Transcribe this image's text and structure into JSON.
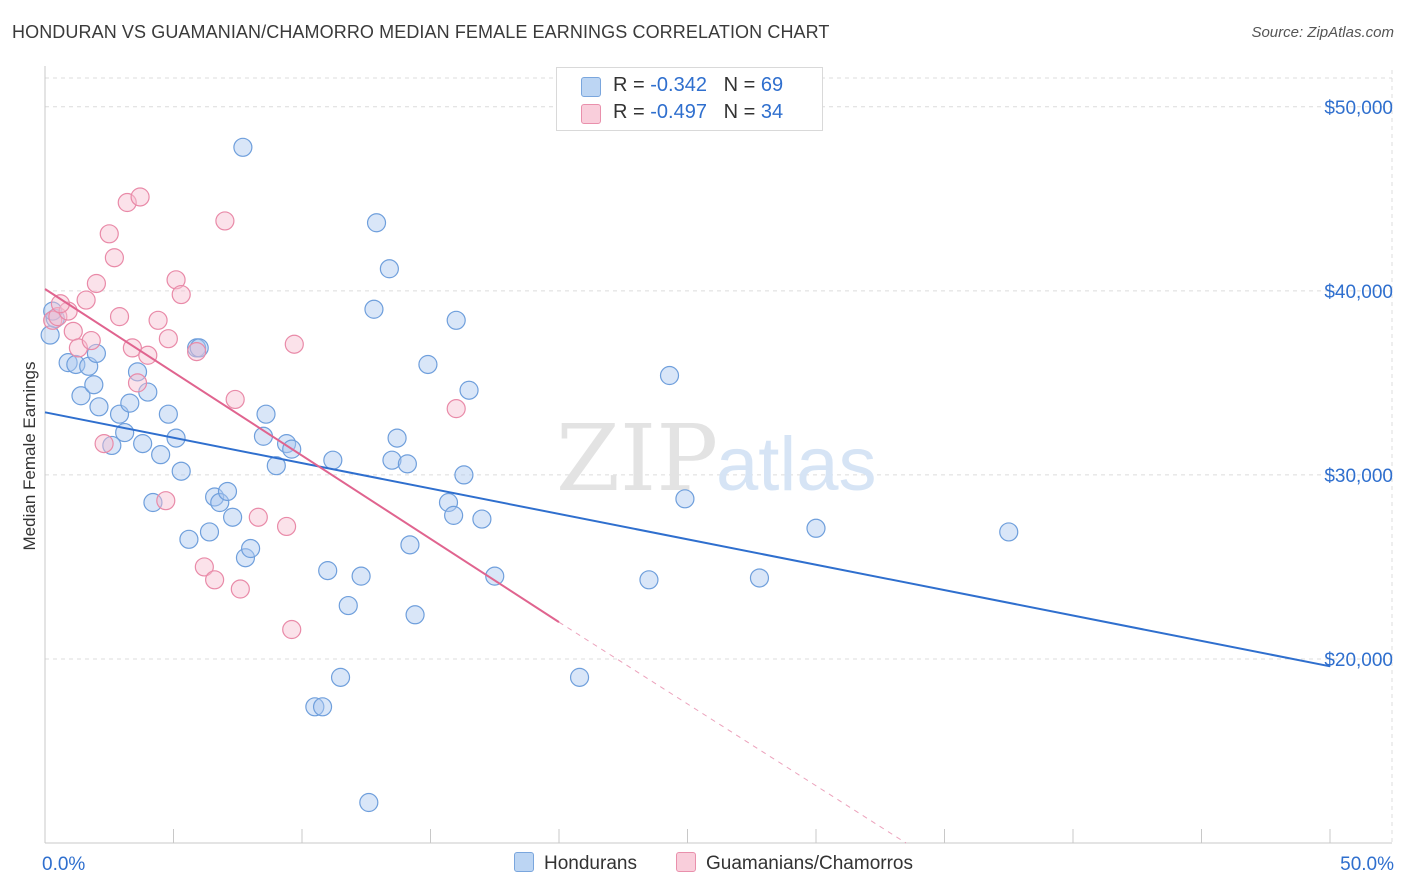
{
  "header": {
    "title": "HONDURAN VS GUAMANIAN/CHAMORRO MEDIAN FEMALE EARNINGS CORRELATION CHART",
    "source": "Source: ZipAtlas.com"
  },
  "watermark": {
    "zip": "ZIP",
    "atlas": "atlas"
  },
  "legend": {
    "rows": [
      {
        "r_label": "R = ",
        "r_value": "-0.342",
        "n_label": "N = ",
        "n_value": "69"
      },
      {
        "r_label": "R = ",
        "r_value": "-0.497",
        "n_label": "N = ",
        "n_value": "34"
      }
    ]
  },
  "bottom_legend": {
    "hondurans": "Hondurans",
    "guamanians": "Guamanians/Chamorros"
  },
  "colors": {
    "blue_fill": "#aac8f0",
    "blue_stroke": "#6f9fdc",
    "blue_line": "#2f6fce",
    "pink_fill": "#f7bfd0",
    "pink_stroke": "#e98aa8",
    "pink_line": "#e0648f",
    "tick_label": "#2f6fce"
  },
  "chart_data": {
    "type": "scatter",
    "ylabel": "Median Female Earnings",
    "xlabel": "",
    "x_tick_labels": [
      "0.0%",
      "50.0%"
    ],
    "y_tick_labels": [
      "$20,000",
      "$30,000",
      "$40,000",
      "$50,000"
    ],
    "xlim": [
      0,
      50
    ],
    "ylim": [
      10000,
      52000
    ],
    "series": [
      {
        "name": "Hondurans",
        "color": "#6f9fdc",
        "trend": {
          "x0": 0,
          "y0": 33400,
          "x1": 50,
          "y1": 19600
        },
        "points": [
          [
            0.2,
            37600
          ],
          [
            0.4,
            38500
          ],
          [
            0.9,
            36100
          ],
          [
            1.2,
            36000
          ],
          [
            1.7,
            35900
          ],
          [
            1.4,
            34300
          ],
          [
            1.9,
            34900
          ],
          [
            2.0,
            36600
          ],
          [
            2.1,
            33700
          ],
          [
            2.6,
            31600
          ],
          [
            2.9,
            33300
          ],
          [
            3.1,
            32300
          ],
          [
            3.3,
            33900
          ],
          [
            3.6,
            35600
          ],
          [
            3.8,
            31700
          ],
          [
            4.0,
            34500
          ],
          [
            4.2,
            28500
          ],
          [
            4.5,
            31100
          ],
          [
            4.8,
            33300
          ],
          [
            5.1,
            32000
          ],
          [
            5.3,
            30200
          ],
          [
            5.6,
            26500
          ],
          [
            5.9,
            36900
          ],
          [
            6.0,
            36900
          ],
          [
            6.4,
            26900
          ],
          [
            6.6,
            28800
          ],
          [
            6.8,
            28500
          ],
          [
            7.1,
            29100
          ],
          [
            7.3,
            27700
          ],
          [
            7.7,
            47800
          ],
          [
            7.8,
            25500
          ],
          [
            8.0,
            26000
          ],
          [
            8.5,
            32100
          ],
          [
            8.6,
            33300
          ],
          [
            9.0,
            30500
          ],
          [
            9.4,
            31700
          ],
          [
            9.6,
            31400
          ],
          [
            10.5,
            17400
          ],
          [
            10.8,
            17400
          ],
          [
            11.0,
            24800
          ],
          [
            11.5,
            19000
          ],
          [
            11.2,
            30800
          ],
          [
            11.8,
            22900
          ],
          [
            12.3,
            24500
          ],
          [
            12.6,
            12200
          ],
          [
            12.8,
            39000
          ],
          [
            12.9,
            43700
          ],
          [
            13.4,
            41200
          ],
          [
            13.5,
            30800
          ],
          [
            13.7,
            32000
          ],
          [
            14.1,
            30600
          ],
          [
            14.2,
            26200
          ],
          [
            14.4,
            22400
          ],
          [
            14.9,
            36000
          ],
          [
            15.7,
            28500
          ],
          [
            15.9,
            27800
          ],
          [
            16.0,
            38400
          ],
          [
            16.3,
            30000
          ],
          [
            16.5,
            34600
          ],
          [
            17.0,
            27600
          ],
          [
            17.5,
            24500
          ],
          [
            20.8,
            19000
          ],
          [
            23.5,
            24300
          ],
          [
            24.3,
            35400
          ],
          [
            24.9,
            28700
          ],
          [
            27.8,
            24400
          ],
          [
            30.0,
            27100
          ],
          [
            37.5,
            26900
          ],
          [
            0.3,
            38900
          ]
        ]
      },
      {
        "name": "Guamanians/Chamorros",
        "color": "#e98aa8",
        "trend": {
          "x0": 0,
          "y0": 40100,
          "x1": 20,
          "y1": 22000
        },
        "trend_dashed": {
          "x0": 20,
          "y0": 22000,
          "x1": 33.5,
          "y1": 10000
        },
        "points": [
          [
            0.3,
            38400
          ],
          [
            0.5,
            38600
          ],
          [
            0.9,
            38900
          ],
          [
            1.1,
            37800
          ],
          [
            1.3,
            36900
          ],
          [
            1.6,
            39500
          ],
          [
            1.8,
            37300
          ],
          [
            2.0,
            40400
          ],
          [
            2.3,
            31700
          ],
          [
            2.5,
            43100
          ],
          [
            2.7,
            41800
          ],
          [
            2.9,
            38600
          ],
          [
            3.2,
            44800
          ],
          [
            3.4,
            36900
          ],
          [
            3.7,
            45100
          ],
          [
            3.6,
            35000
          ],
          [
            4.0,
            36500
          ],
          [
            4.4,
            38400
          ],
          [
            4.7,
            28600
          ],
          [
            4.8,
            37400
          ],
          [
            5.1,
            40600
          ],
          [
            5.3,
            39800
          ],
          [
            5.9,
            36700
          ],
          [
            6.2,
            25000
          ],
          [
            6.6,
            24300
          ],
          [
            7.0,
            43800
          ],
          [
            7.4,
            34100
          ],
          [
            7.6,
            23800
          ],
          [
            8.3,
            27700
          ],
          [
            9.4,
            27200
          ],
          [
            9.6,
            21600
          ],
          [
            9.7,
            37100
          ],
          [
            16.0,
            33600
          ],
          [
            0.6,
            39300
          ]
        ]
      }
    ]
  }
}
